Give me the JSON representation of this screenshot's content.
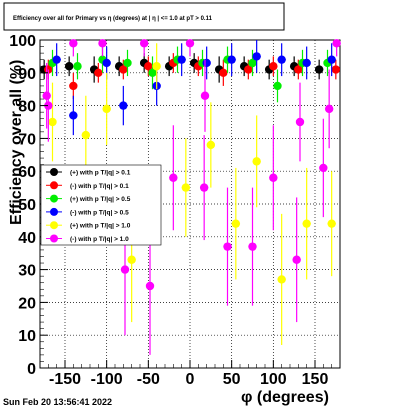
{
  "chart_data": {
    "type": "scatter",
    "title": "Efficiency over all for Primary vs η (degrees) at |  η | <= 1.0 at pT > 0.11",
    "xlabel": "φ (degrees)",
    "ylabel": "Efficiency over all (%)",
    "xlim": [
      -180,
      180
    ],
    "ylim": [
      0,
      100
    ],
    "xticks": [
      -150,
      -100,
      -50,
      0,
      50,
      100,
      150
    ],
    "yticks": [
      0,
      10,
      20,
      30,
      40,
      50,
      60,
      70,
      80,
      90,
      100
    ],
    "grid": true,
    "legend_position": "left-middle",
    "timestamp": "Sun Feb 20 13:56:41 2022",
    "series": [
      {
        "name": "(+) with p T/|q| > 0.1",
        "color": "#000000",
        "points": [
          {
            "x": -175,
            "y": 91,
            "err": 3
          },
          {
            "x": -145,
            "y": 92,
            "err": 3
          },
          {
            "x": -115,
            "y": 91,
            "err": 4
          },
          {
            "x": -85,
            "y": 92,
            "err": 3
          },
          {
            "x": -55,
            "y": 93,
            "err": 3
          },
          {
            "x": -25,
            "y": 92,
            "err": 3
          },
          {
            "x": 5,
            "y": 93,
            "err": 3
          },
          {
            "x": 35,
            "y": 91,
            "err": 4
          },
          {
            "x": 65,
            "y": 92,
            "err": 3
          },
          {
            "x": 95,
            "y": 91,
            "err": 3
          },
          {
            "x": 125,
            "y": 92,
            "err": 3
          },
          {
            "x": 155,
            "y": 91,
            "err": 3
          }
        ]
      },
      {
        "name": "(-) with p T/|q| > 0.1",
        "color": "#ff0000",
        "points": [
          {
            "x": -170,
            "y": 91,
            "err": 3
          },
          {
            "x": -140,
            "y": 86,
            "err": 4
          },
          {
            "x": -110,
            "y": 90,
            "err": 3
          },
          {
            "x": -80,
            "y": 91,
            "err": 3
          },
          {
            "x": -50,
            "y": 92,
            "err": 3
          },
          {
            "x": -20,
            "y": 93,
            "err": 3
          },
          {
            "x": 10,
            "y": 92,
            "err": 3
          },
          {
            "x": 40,
            "y": 90,
            "err": 4
          },
          {
            "x": 70,
            "y": 91,
            "err": 3
          },
          {
            "x": 100,
            "y": 92,
            "err": 3
          },
          {
            "x": 130,
            "y": 91,
            "err": 3
          },
          {
            "x": 175,
            "y": 91,
            "err": 3
          }
        ]
      },
      {
        "name": "(+) with p T/|q| > 0.5",
        "color": "#00ee00",
        "points": [
          {
            "x": -165,
            "y": 93,
            "err": 4
          },
          {
            "x": -135,
            "y": 92,
            "err": 4
          },
          {
            "x": -105,
            "y": 94,
            "err": 4
          },
          {
            "x": -75,
            "y": 93,
            "err": 4
          },
          {
            "x": -45,
            "y": 90,
            "err": 5
          },
          {
            "x": -15,
            "y": 94,
            "err": 4
          },
          {
            "x": 15,
            "y": 93,
            "err": 4
          },
          {
            "x": 45,
            "y": 94,
            "err": 4
          },
          {
            "x": 75,
            "y": 93,
            "err": 4
          },
          {
            "x": 105,
            "y": 86,
            "err": 5
          },
          {
            "x": 135,
            "y": 93,
            "err": 4
          },
          {
            "x": 165,
            "y": 93,
            "err": 4
          }
        ]
      },
      {
        "name": "(-) with p T/|q| > 0.5",
        "color": "#0000ff",
        "points": [
          {
            "x": -160,
            "y": 94,
            "err": 5
          },
          {
            "x": -140,
            "y": 77,
            "err": 6
          },
          {
            "x": -100,
            "y": 93,
            "err": 5
          },
          {
            "x": -80,
            "y": 80,
            "err": 6
          },
          {
            "x": -40,
            "y": 86,
            "err": 6
          },
          {
            "x": -10,
            "y": 94,
            "err": 5
          },
          {
            "x": 20,
            "y": 93,
            "err": 5
          },
          {
            "x": 50,
            "y": 94,
            "err": 5
          },
          {
            "x": 80,
            "y": 95,
            "err": 5
          },
          {
            "x": 110,
            "y": 94,
            "err": 5
          },
          {
            "x": 140,
            "y": 93,
            "err": 5
          },
          {
            "x": 170,
            "y": 94,
            "err": 5
          }
        ]
      },
      {
        "name": "(+) with p T/|q| > 1.0",
        "color": "#ffff00",
        "points": [
          {
            "x": -165,
            "y": 75,
            "err": 12
          },
          {
            "x": -125,
            "y": 71,
            "err": 12
          },
          {
            "x": -100,
            "y": 79,
            "err": 11
          },
          {
            "x": -70,
            "y": 33,
            "err": 19
          },
          {
            "x": -40,
            "y": 92,
            "err": 7
          },
          {
            "x": -5,
            "y": 55,
            "err": 15
          },
          {
            "x": 25,
            "y": 68,
            "err": 13
          },
          {
            "x": 55,
            "y": 44,
            "err": 17
          },
          {
            "x": 80,
            "y": 63,
            "err": 14
          },
          {
            "x": 110,
            "y": 27,
            "err": 20
          },
          {
            "x": 140,
            "y": 44,
            "err": 17
          },
          {
            "x": 170,
            "y": 44,
            "err": 16
          }
        ]
      },
      {
        "name": "(-) with p T/|q| > 1.0",
        "color": "#ff00ff",
        "points": [
          {
            "x": -172,
            "y": 83,
            "err": 10
          },
          {
            "x": -170,
            "y": 80,
            "err": 11
          },
          {
            "x": -140,
            "y": 99,
            "err": 4
          },
          {
            "x": -105,
            "y": 99,
            "err": 4
          },
          {
            "x": -78,
            "y": 30,
            "err": 20
          },
          {
            "x": -55,
            "y": 99,
            "err": 4
          },
          {
            "x": -48,
            "y": 25,
            "err": 21
          },
          {
            "x": -20,
            "y": 58,
            "err": 16
          },
          {
            "x": 0,
            "y": 99,
            "err": 4
          },
          {
            "x": 17,
            "y": 55,
            "err": 16
          },
          {
            "x": 18,
            "y": 83,
            "err": 11
          },
          {
            "x": 45,
            "y": 37,
            "err": 18
          },
          {
            "x": 75,
            "y": 37,
            "err": 18
          },
          {
            "x": 100,
            "y": 58,
            "err": 16
          },
          {
            "x": 128,
            "y": 33,
            "err": 19
          },
          {
            "x": 132,
            "y": 75,
            "err": 12
          },
          {
            "x": 160,
            "y": 61,
            "err": 15
          },
          {
            "x": 167,
            "y": 79,
            "err": 12
          },
          {
            "x": 176,
            "y": 99,
            "err": 4
          }
        ]
      }
    ]
  }
}
